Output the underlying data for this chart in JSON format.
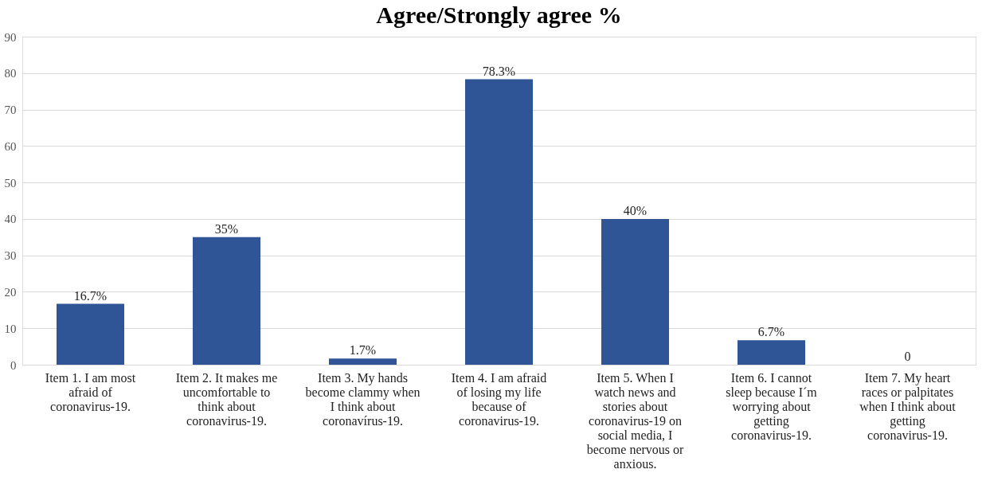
{
  "chart_data": {
    "type": "bar",
    "title": "Agree/Strongly agree %",
    "categories": [
      "Item 1. I am most afraid of coronavirus-19.",
      "Item 2. It makes me uncomfortable to think about coronavirus-19.",
      "Item 3. My hands become clammy when I think about coronavírus-19.",
      "Item 4. I am afraid of losing my life because of coronavirus-19.",
      "Item 5. When I watch news and stories about coronavirus-19 on social media, I become nervous or anxious.",
      "Item 6. I cannot sleep because I´m worrying about getting coronavirus-19.",
      "Item 7. My heart races or palpitates when I think about getting coronavirus-19."
    ],
    "values": [
      16.7,
      35,
      1.7,
      78.3,
      40,
      6.7,
      0
    ],
    "value_labels": [
      "16.7%",
      "35%",
      "1.7%",
      "78.3%",
      "40%",
      "6.7%",
      "0"
    ],
    "color": "#2f5597",
    "ylim": [
      0,
      90
    ],
    "yticks": [
      0,
      10,
      20,
      30,
      40,
      50,
      60,
      70,
      80,
      90
    ],
    "grid": "y"
  }
}
